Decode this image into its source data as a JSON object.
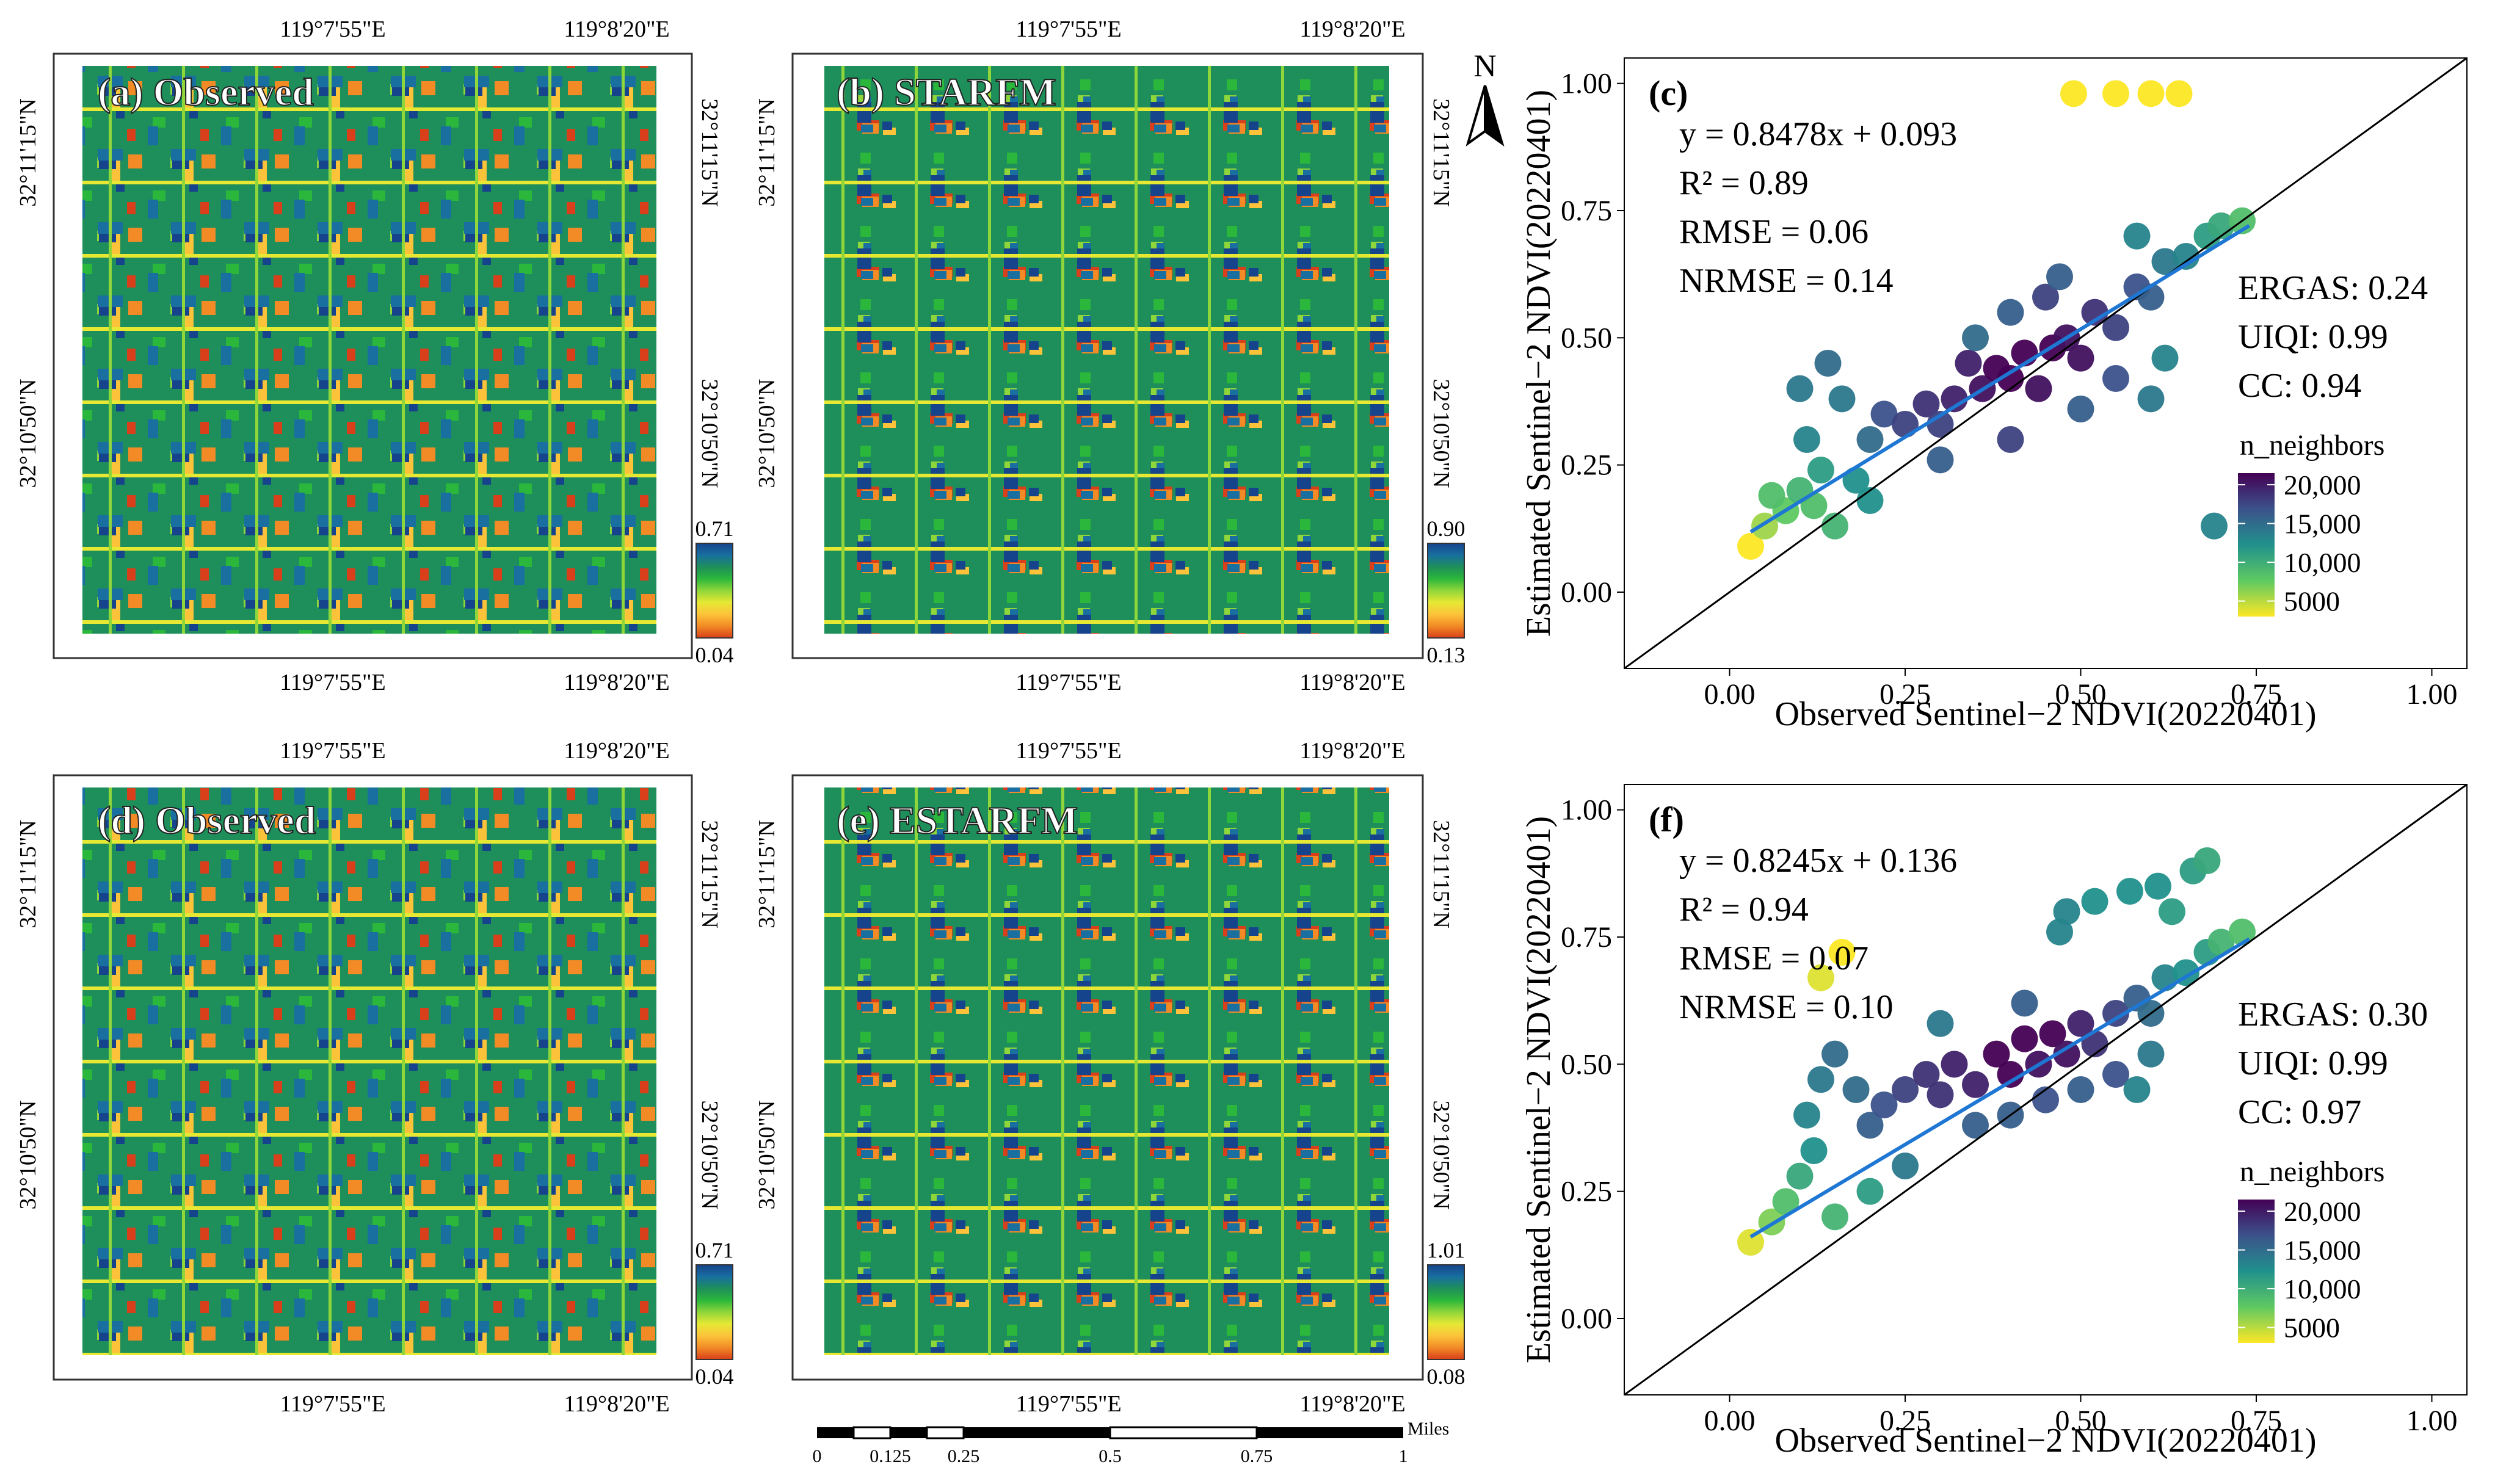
{
  "map_panels": [
    {
      "label": "(a) Observed",
      "legend_max": "0.71",
      "legend_min": "0.04"
    },
    {
      "label": "(b) STARFM",
      "legend_max": "0.90",
      "legend_min": "0.13"
    },
    {
      "label": "(d) Observed",
      "legend_max": "0.71",
      "legend_min": "0.04"
    },
    {
      "label": "(e) ESTARFM",
      "legend_max": "1.01",
      "legend_min": "0.08"
    }
  ],
  "map_axes": {
    "lon_ticks": [
      "119°7'55\"E",
      "119°8'20\"E"
    ],
    "lat_ticks": [
      "32°11'15\"N",
      "32°10'50\"N"
    ]
  },
  "north_arrow": "N",
  "scale_bar": {
    "unit": "Miles",
    "labels": [
      "0",
      "0.125",
      "0.25",
      "0.5",
      "0.75",
      "1"
    ]
  },
  "colors": {
    "map_ramp": [
      "#d93f1a",
      "#f28a26",
      "#fcc33a",
      "#e6e834",
      "#8fd63a",
      "#2bb73b",
      "#1e8f5a",
      "#186fa0",
      "#16448c"
    ],
    "viridis_legend": [
      "#fde725",
      "#5ec962",
      "#21918c",
      "#3b528b",
      "#440154"
    ],
    "fit_line": "#1f77d4",
    "identity_line": "#000000"
  },
  "chart_data": [
    {
      "type": "scatter",
      "panel": "(c)",
      "xlabel": "Observed Sentinel−2 NDVI(20220401)",
      "ylabel": "Estimated Sentinel−2 NDVI(20220401)",
      "xlim": [
        -0.15,
        1.05
      ],
      "ylim": [
        -0.15,
        1.05
      ],
      "x_ticks": [
        "0.00",
        "0.25",
        "0.50",
        "0.75",
        "1.00"
      ],
      "y_ticks": [
        "0.00",
        "0.25",
        "0.50",
        "0.75",
        "1.00"
      ],
      "tick_values": [
        0,
        0.25,
        0.5,
        0.75,
        1.0
      ],
      "fit": {
        "slope": 0.8478,
        "intercept": 0.093,
        "x_range": [
          0.03,
          0.74
        ]
      },
      "identity_line": true,
      "stats_left": [
        "y = 0.8478x + 0.093",
        "R² = 0.89",
        "RMSE = 0.06",
        "NRMSE = 0.14"
      ],
      "stats_right": [
        "ERGAS: 0.24",
        "UIQI: 0.99",
        "CC: 0.94"
      ],
      "legend_title": "n_neighbors",
      "legend_ticks": [
        "20,000",
        "15,000",
        "10,000",
        "5000"
      ],
      "legend_values": [
        20000,
        15000,
        10000,
        5000
      ],
      "legend_range": [
        3000,
        21500
      ],
      "points": [
        [
          0.03,
          0.09,
          0.0
        ],
        [
          0.05,
          0.13,
          0.15
        ],
        [
          0.08,
          0.16,
          0.25
        ],
        [
          0.1,
          0.2,
          0.35
        ],
        [
          0.12,
          0.17,
          0.3
        ],
        [
          0.06,
          0.19,
          0.3
        ],
        [
          0.13,
          0.24,
          0.45
        ],
        [
          0.11,
          0.3,
          0.55
        ],
        [
          0.1,
          0.4,
          0.6
        ],
        [
          0.14,
          0.45,
          0.65
        ],
        [
          0.16,
          0.38,
          0.6
        ],
        [
          0.18,
          0.22,
          0.5
        ],
        [
          0.2,
          0.3,
          0.65
        ],
        [
          0.22,
          0.35,
          0.75
        ],
        [
          0.25,
          0.33,
          0.8
        ],
        [
          0.28,
          0.37,
          0.85
        ],
        [
          0.3,
          0.33,
          0.8
        ],
        [
          0.32,
          0.38,
          0.9
        ],
        [
          0.34,
          0.45,
          0.9
        ],
        [
          0.36,
          0.4,
          0.95
        ],
        [
          0.38,
          0.44,
          1.0
        ],
        [
          0.4,
          0.42,
          1.0
        ],
        [
          0.42,
          0.47,
          1.0
        ],
        [
          0.44,
          0.4,
          0.95
        ],
        [
          0.46,
          0.48,
          1.0
        ],
        [
          0.48,
          0.5,
          0.95
        ],
        [
          0.5,
          0.46,
          0.95
        ],
        [
          0.52,
          0.55,
          0.85
        ],
        [
          0.55,
          0.52,
          0.8
        ],
        [
          0.58,
          0.6,
          0.75
        ],
        [
          0.6,
          0.58,
          0.7
        ],
        [
          0.62,
          0.65,
          0.6
        ],
        [
          0.65,
          0.66,
          0.55
        ],
        [
          0.68,
          0.7,
          0.45
        ],
        [
          0.7,
          0.72,
          0.4
        ],
        [
          0.73,
          0.73,
          0.3
        ],
        [
          0.55,
          0.42,
          0.75
        ],
        [
          0.5,
          0.36,
          0.7
        ],
        [
          0.4,
          0.3,
          0.8
        ],
        [
          0.3,
          0.26,
          0.7
        ],
        [
          0.2,
          0.18,
          0.5
        ],
        [
          0.15,
          0.13,
          0.35
        ],
        [
          0.6,
          0.38,
          0.6
        ],
        [
          0.62,
          0.46,
          0.55
        ],
        [
          0.45,
          0.58,
          0.8
        ],
        [
          0.4,
          0.55,
          0.7
        ],
        [
          0.35,
          0.5,
          0.65
        ],
        [
          0.58,
          0.7,
          0.55
        ],
        [
          0.49,
          0.98,
          0.0
        ],
        [
          0.55,
          0.98,
          0.0
        ],
        [
          0.6,
          0.98,
          0.0
        ],
        [
          0.64,
          0.98,
          0.0
        ],
        [
          0.69,
          0.13,
          0.55
        ],
        [
          0.47,
          0.62,
          0.7
        ]
      ]
    },
    {
      "type": "scatter",
      "panel": "(f)",
      "xlabel": "Observed Sentinel−2 NDVI(20220401)",
      "ylabel": "Estimated Sentinel−2 NDVI(20220401)",
      "xlim": [
        -0.15,
        1.05
      ],
      "ylim": [
        -0.15,
        1.05
      ],
      "x_ticks": [
        "0.00",
        "0.25",
        "0.50",
        "0.75",
        "1.00"
      ],
      "y_ticks": [
        "0.00",
        "0.25",
        "0.50",
        "0.75",
        "1.00"
      ],
      "tick_values": [
        0,
        0.25,
        0.5,
        0.75,
        1.0
      ],
      "fit": {
        "slope": 0.8245,
        "intercept": 0.136,
        "x_range": [
          0.03,
          0.74
        ]
      },
      "identity_line": true,
      "stats_left": [
        "y = 0.8245x + 0.136",
        "R² = 0.94",
        "RMSE = 0.07",
        "NRMSE = 0.10"
      ],
      "stats_right": [
        "ERGAS: 0.30",
        "UIQI: 0.99",
        "CC: 0.97"
      ],
      "legend_title": "n_neighbors",
      "legend_ticks": [
        "20,000",
        "15,000",
        "10,000",
        "5000"
      ],
      "legend_values": [
        20000,
        15000,
        10000,
        5000
      ],
      "legend_range": [
        3000,
        21500
      ],
      "points": [
        [
          0.03,
          0.15,
          0.05
        ],
        [
          0.06,
          0.19,
          0.2
        ],
        [
          0.08,
          0.23,
          0.3
        ],
        [
          0.1,
          0.28,
          0.4
        ],
        [
          0.12,
          0.33,
          0.5
        ],
        [
          0.11,
          0.4,
          0.55
        ],
        [
          0.13,
          0.47,
          0.6
        ],
        [
          0.15,
          0.52,
          0.65
        ],
        [
          0.18,
          0.45,
          0.65
        ],
        [
          0.2,
          0.38,
          0.7
        ],
        [
          0.22,
          0.42,
          0.75
        ],
        [
          0.25,
          0.45,
          0.8
        ],
        [
          0.28,
          0.48,
          0.85
        ],
        [
          0.3,
          0.44,
          0.85
        ],
        [
          0.32,
          0.5,
          0.9
        ],
        [
          0.35,
          0.46,
          0.9
        ],
        [
          0.38,
          0.52,
          1.0
        ],
        [
          0.4,
          0.48,
          1.0
        ],
        [
          0.42,
          0.55,
          1.0
        ],
        [
          0.44,
          0.5,
          0.95
        ],
        [
          0.46,
          0.56,
          1.0
        ],
        [
          0.48,
          0.52,
          0.95
        ],
        [
          0.5,
          0.58,
          0.9
        ],
        [
          0.52,
          0.54,
          0.85
        ],
        [
          0.55,
          0.6,
          0.8
        ],
        [
          0.58,
          0.63,
          0.7
        ],
        [
          0.6,
          0.6,
          0.65
        ],
        [
          0.62,
          0.67,
          0.55
        ],
        [
          0.65,
          0.68,
          0.5
        ],
        [
          0.68,
          0.72,
          0.45
        ],
        [
          0.7,
          0.74,
          0.35
        ],
        [
          0.73,
          0.76,
          0.3
        ],
        [
          0.55,
          0.48,
          0.75
        ],
        [
          0.5,
          0.45,
          0.7
        ],
        [
          0.45,
          0.43,
          0.75
        ],
        [
          0.4,
          0.4,
          0.7
        ],
        [
          0.6,
          0.52,
          0.6
        ],
        [
          0.58,
          0.45,
          0.55
        ],
        [
          0.25,
          0.3,
          0.6
        ],
        [
          0.2,
          0.25,
          0.45
        ],
        [
          0.15,
          0.2,
          0.35
        ],
        [
          0.35,
          0.38,
          0.7
        ],
        [
          0.42,
          0.62,
          0.7
        ],
        [
          0.3,
          0.58,
          0.6
        ],
        [
          0.52,
          0.82,
          0.5
        ],
        [
          0.48,
          0.8,
          0.55
        ],
        [
          0.57,
          0.84,
          0.5
        ],
        [
          0.61,
          0.85,
          0.5
        ],
        [
          0.66,
          0.88,
          0.45
        ],
        [
          0.68,
          0.9,
          0.4
        ],
        [
          0.16,
          0.72,
          0.0
        ],
        [
          0.13,
          0.67,
          0.05
        ],
        [
          0.47,
          0.76,
          0.55
        ],
        [
          0.63,
          0.8,
          0.45
        ]
      ]
    }
  ]
}
